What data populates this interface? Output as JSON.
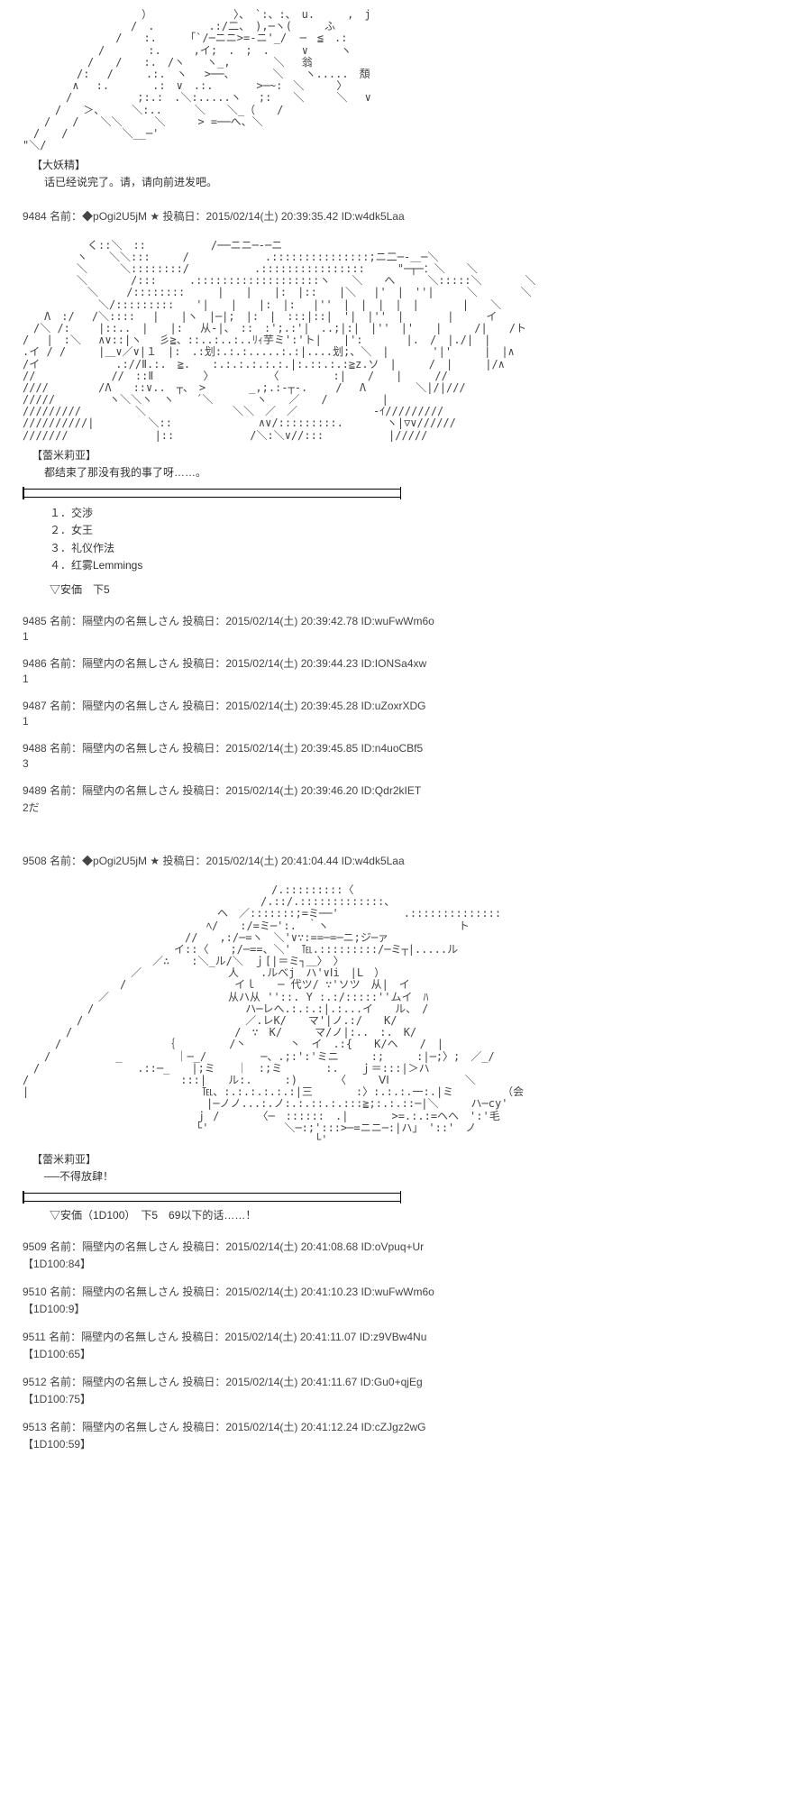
{
  "art1_snippet": "　　　　　　　　　　　）　　　　　　　　〉、　`:、:、　u.　　　,　j\n　　　　　　　　　　/　.　　　　　.:/二、　),─ヽ(　　　ふ\n　　　　　　　　 /　　:.　　 「`/─ニニ>=-ニ'_/  ─　≦　.:\n　　　　　　　/　　　　:.　　　,イ;　.　;　.　　　∨　　　ヽ\n　　　　　　/　　/　　:.　/ヽ　　ヽ_,　　　　＼　 翁\n　　　　　/:　 /　　　.:.　ヽ　 >──、　　　　＼　　ヽ.....　頽\n　　　　 ∧　 :.　　　　.:　∨　.:.　　　　>─~:　＼　　　〉\n　　　　/　　　　　　;:.:　.＼:.....ヽ　 ;:　　＼　　　＼　 ∨\n　　　/　　＞、　　　＼:..　　　＼　　＼_（　　/\n　　/　　/　　＼＼　　　＼　　　> =──へ、＼\n　/　　/　　　　　＼__─'\n\"＼/",
  "char1_name": "【大妖精】",
  "char1_text": "话已经说完了。请，请向前进发吧。",
  "post9484_header": "9484 名前：◆pOgi2U5jM ★ 投稿日：2015/02/14(土) 20:39:35.42 ID:w4dk5Laa",
  "art2_snippet": "　　　　　　く::＼　::　　　　　　/──ニニ─-─ニ\n　　　　　ヽ　　＼＼:::　　　/　　　　　　　.:::::::::::::::;ニ二─-＿─＼\n　　　　　＼　　　＼::::::::/　　　　　　.::::::::::::::::　　　\"─┬─：＼　　＼\n　　　　　＼　　　　/:::　　　.:::::::::::::::::::ヽ　　＼　　へ　　　＼:::::＼　　　　＼\n　　　　　　＼　　 /::::::::　　　|　　|　　|:　|::　　|＼　 |'　|　''|　　　＼　　　　＼\n　　　　　　　＼/:::::::::　　'|　　|　　|:　|:　 |''　|　|　|　|　|　　　　|　　＼\n　　Λ　:/　 /＼::::　 |　　|ヽ　|─|;　|:　|　:::|::|　'|　|''　|　　　　|　　　イ\n　/＼ /:　　 |::..　|　　|:　 从-|、　::　:';.:'|　..;|:|　|''　|'　　|　　　/|　　/ト\n/　 |　:＼　 ∧∨::|ヽ　 彡≧、::..:..:..ﾘｨ芋ミ':'ト|　　|':　　　　|.　/　|./|　|\n.イ / /　　　|＿∨／∨|１　|:　.:划:.:.:.....:.:|....划;、＼　|　　　　'|'　　　|　|∧\n/イ　　　　　　　.://Ⅱ.:.　≧.　　:.:.:.:.:.:.|:.::.:.:≧z.ソ　|　　　/　|　　　|/∧\n//　　　　　　　//　::Ⅱ　　　　 〉　　　　　　〈　　　　　:|　　/　　|　　　//\n////　　　　 /Λ　　::∨..　┬、　>　　　　_,;.:-┬-.　　 /　 Λ　　　　 ＼|/|///\n/////　　　　　ヽ＼＼ヽ　ヽ　　´＼　　　　ヽ　　／　　/　　　　　|\n/////////　　　　　＼　　　　　　　　＼＼　／　／　　　　　　　-ｲ/////////\n//////////|　　　　　＼::　　　　　　　　∧∨/:::::::::.　　　　ヽ|▽∨//////\n///////　　　　　　　　|::　　　　　　　/＼:＼∨//:::　　　　　　|/////",
  "char2_name": "【蕾米莉亚】",
  "char2_text": "都结束了那没有我的事了呀……。",
  "options": {
    "o1": "１．交渉",
    "o2": "２．女王",
    "o3": "３．礼仪作法",
    "o4": "４．红雾Lemmings"
  },
  "anka1": "▽安価　下5",
  "replies1": [
    {
      "h": "9485 名前：隔壁内の名無しさん 投稿日：2015/02/14(土) 20:39:42.78 ID:wuFwWm6o",
      "b": "1"
    },
    {
      "h": "9486 名前：隔壁内の名無しさん 投稿日：2015/02/14(土) 20:39:44.23 ID:IONSa4xw",
      "b": "1"
    },
    {
      "h": "9487 名前：隔壁内の名無しさん 投稿日：2015/02/14(土) 20:39:45.28 ID:uZoxrXDG",
      "b": "1"
    },
    {
      "h": "9488 名前：隔壁内の名無しさん 投稿日：2015/02/14(土) 20:39:45.85 ID:n4uoCBf5",
      "b": "3"
    },
    {
      "h": "9489 名前：隔壁内の名無しさん 投稿日：2015/02/14(土) 20:39:46.20 ID:Qdr2kIET",
      "b": "2だ"
    }
  ],
  "post9508_header": "9508 名前：◆pOgi2U5jM ★ 投稿日：2015/02/14(土) 20:41:04.44 ID:w4dk5Laa",
  "art3_snippet": "　　　　　　　　　　　　　　　　　　　　　　　/.:::::::::〈\n　　　　　　　　　　　　　　　　　　　　　　/.::/.:::::::::::::、\n　　　　　　　　　　　　　　　　　　ヘ　／:::::::;=ミ──'　　　　　　.::::::::::::::\n　　　　　　　　　　　　　　　　　ﾍ/　　:/=ミ─':.　｀ヽ　　　　　　　　　　　　ト\n　　　　　　　　　　　　　　　//　　,:/─=ヽ　＼'∨∵:==─=─ニ;ジ─ァ\n　　　　　　　　　　　　　　イ::〈　　;/─==、＼'　℡.:::::::::/─ミ┬|.....ル\n　　　　　　　　　　　　／∴　　:＼_ル/＼　ｊ[|＝ミ┐＿〉　〉\n　　　　　　　　　　／　　　　　　　　人　　.ルべj　ハ'∨Ⅰi　|L　）\n　　　　　　　　　/　　　　　　　　　　イｌ　　─ 代ツ/ ∵'ソツ　从|　イ\n　　　　　　　／　　　　　　　　　　　从ハ从 ''::. Y :.:/:::::''ムイ　ﾊ\n　　　　　　/　　　　　　　　　　　　　　ハ─レへ.:.:.:|.:...イ　　ル、　/\n　　　　　/　　　　　　　　　　　　　　　／.レK/　　マ'|ノ.:/　　K/\n　　　　/　　　　　　　　　　　　　　　/　∵　K/　　　マ/ノ|:..　:.　K/\n　　　/　　　　　　　　　　｛　　　　　/丶　　　　丶　イ　.:{　　K/ヘ　　/　|\n　　/　　　　　　_　　　　　｜─_/　　　　　─、.;:':'ミニ　　　:;　　　:|─;〉;　／_/\n　/　　　　　　　　　.::─_　　|;ミ　　｜　:;ミ　　　　:.　　ｊ＝:::|＞ハ\n/　　　　　　　　　　　　　　:::|　　ル:.　　　:)　　　　〈　　　ⅤⅠ　　　　　　　＼\n|　　　　　　　　　　　　　　　　℡、:.:.:.:.:.:|三　　　　:〉:.:.:.一:.|ミ　　　　　（会\n　　　　　　　　　　　　　　　　　|─ノノ...:.ノ:.:.::.:.:::≧;:.:.::─|＼　　　ハ─cy'\n　　　　　　　　　　　　　　　　ｊ /　　　　〈─　::::::　.|　　　　>=.:.:=ヘヘ　':'毛\n　　　　　　　　　　　　　　　　└'　　　　　　　＼─:;':::>─=ニニ─:|ハ」　'::'　ノ\n　　　　　　　　　　　　　　　　　　　　　　　　　　　└'",
  "char3_name": "【蕾米莉亚】",
  "char3_text": "──不得放肆！",
  "anka2": "▽安価（1D100）　下5　69以下的话……！",
  "replies2": [
    {
      "h": "9509 名前：隔壁内の名無しさん 投稿日：2015/02/14(土) 20:41:08.68 ID:oVpuq+Ur",
      "b": "【1D100:84】"
    },
    {
      "h": "9510 名前：隔壁内の名無しさん 投稿日：2015/02/14(土) 20:41:10.23 ID:wuFwWm6o",
      "b": "【1D100:9】"
    },
    {
      "h": "9511 名前：隔壁内の名無しさん 投稿日：2015/02/14(土) 20:41:11.07 ID:z9VBw4Nu",
      "b": "【1D100:65】"
    },
    {
      "h": "9512 名前：隔壁内の名無しさん 投稿日：2015/02/14(土) 20:41:11.67 ID:Gu0+qjEg",
      "b": "【1D100:75】"
    },
    {
      "h": "9513 名前：隔壁内の名無しさん 投稿日：2015/02/14(土) 20:41:12.24 ID:cZJgz2wG",
      "b": "【1D100:59】"
    }
  ]
}
